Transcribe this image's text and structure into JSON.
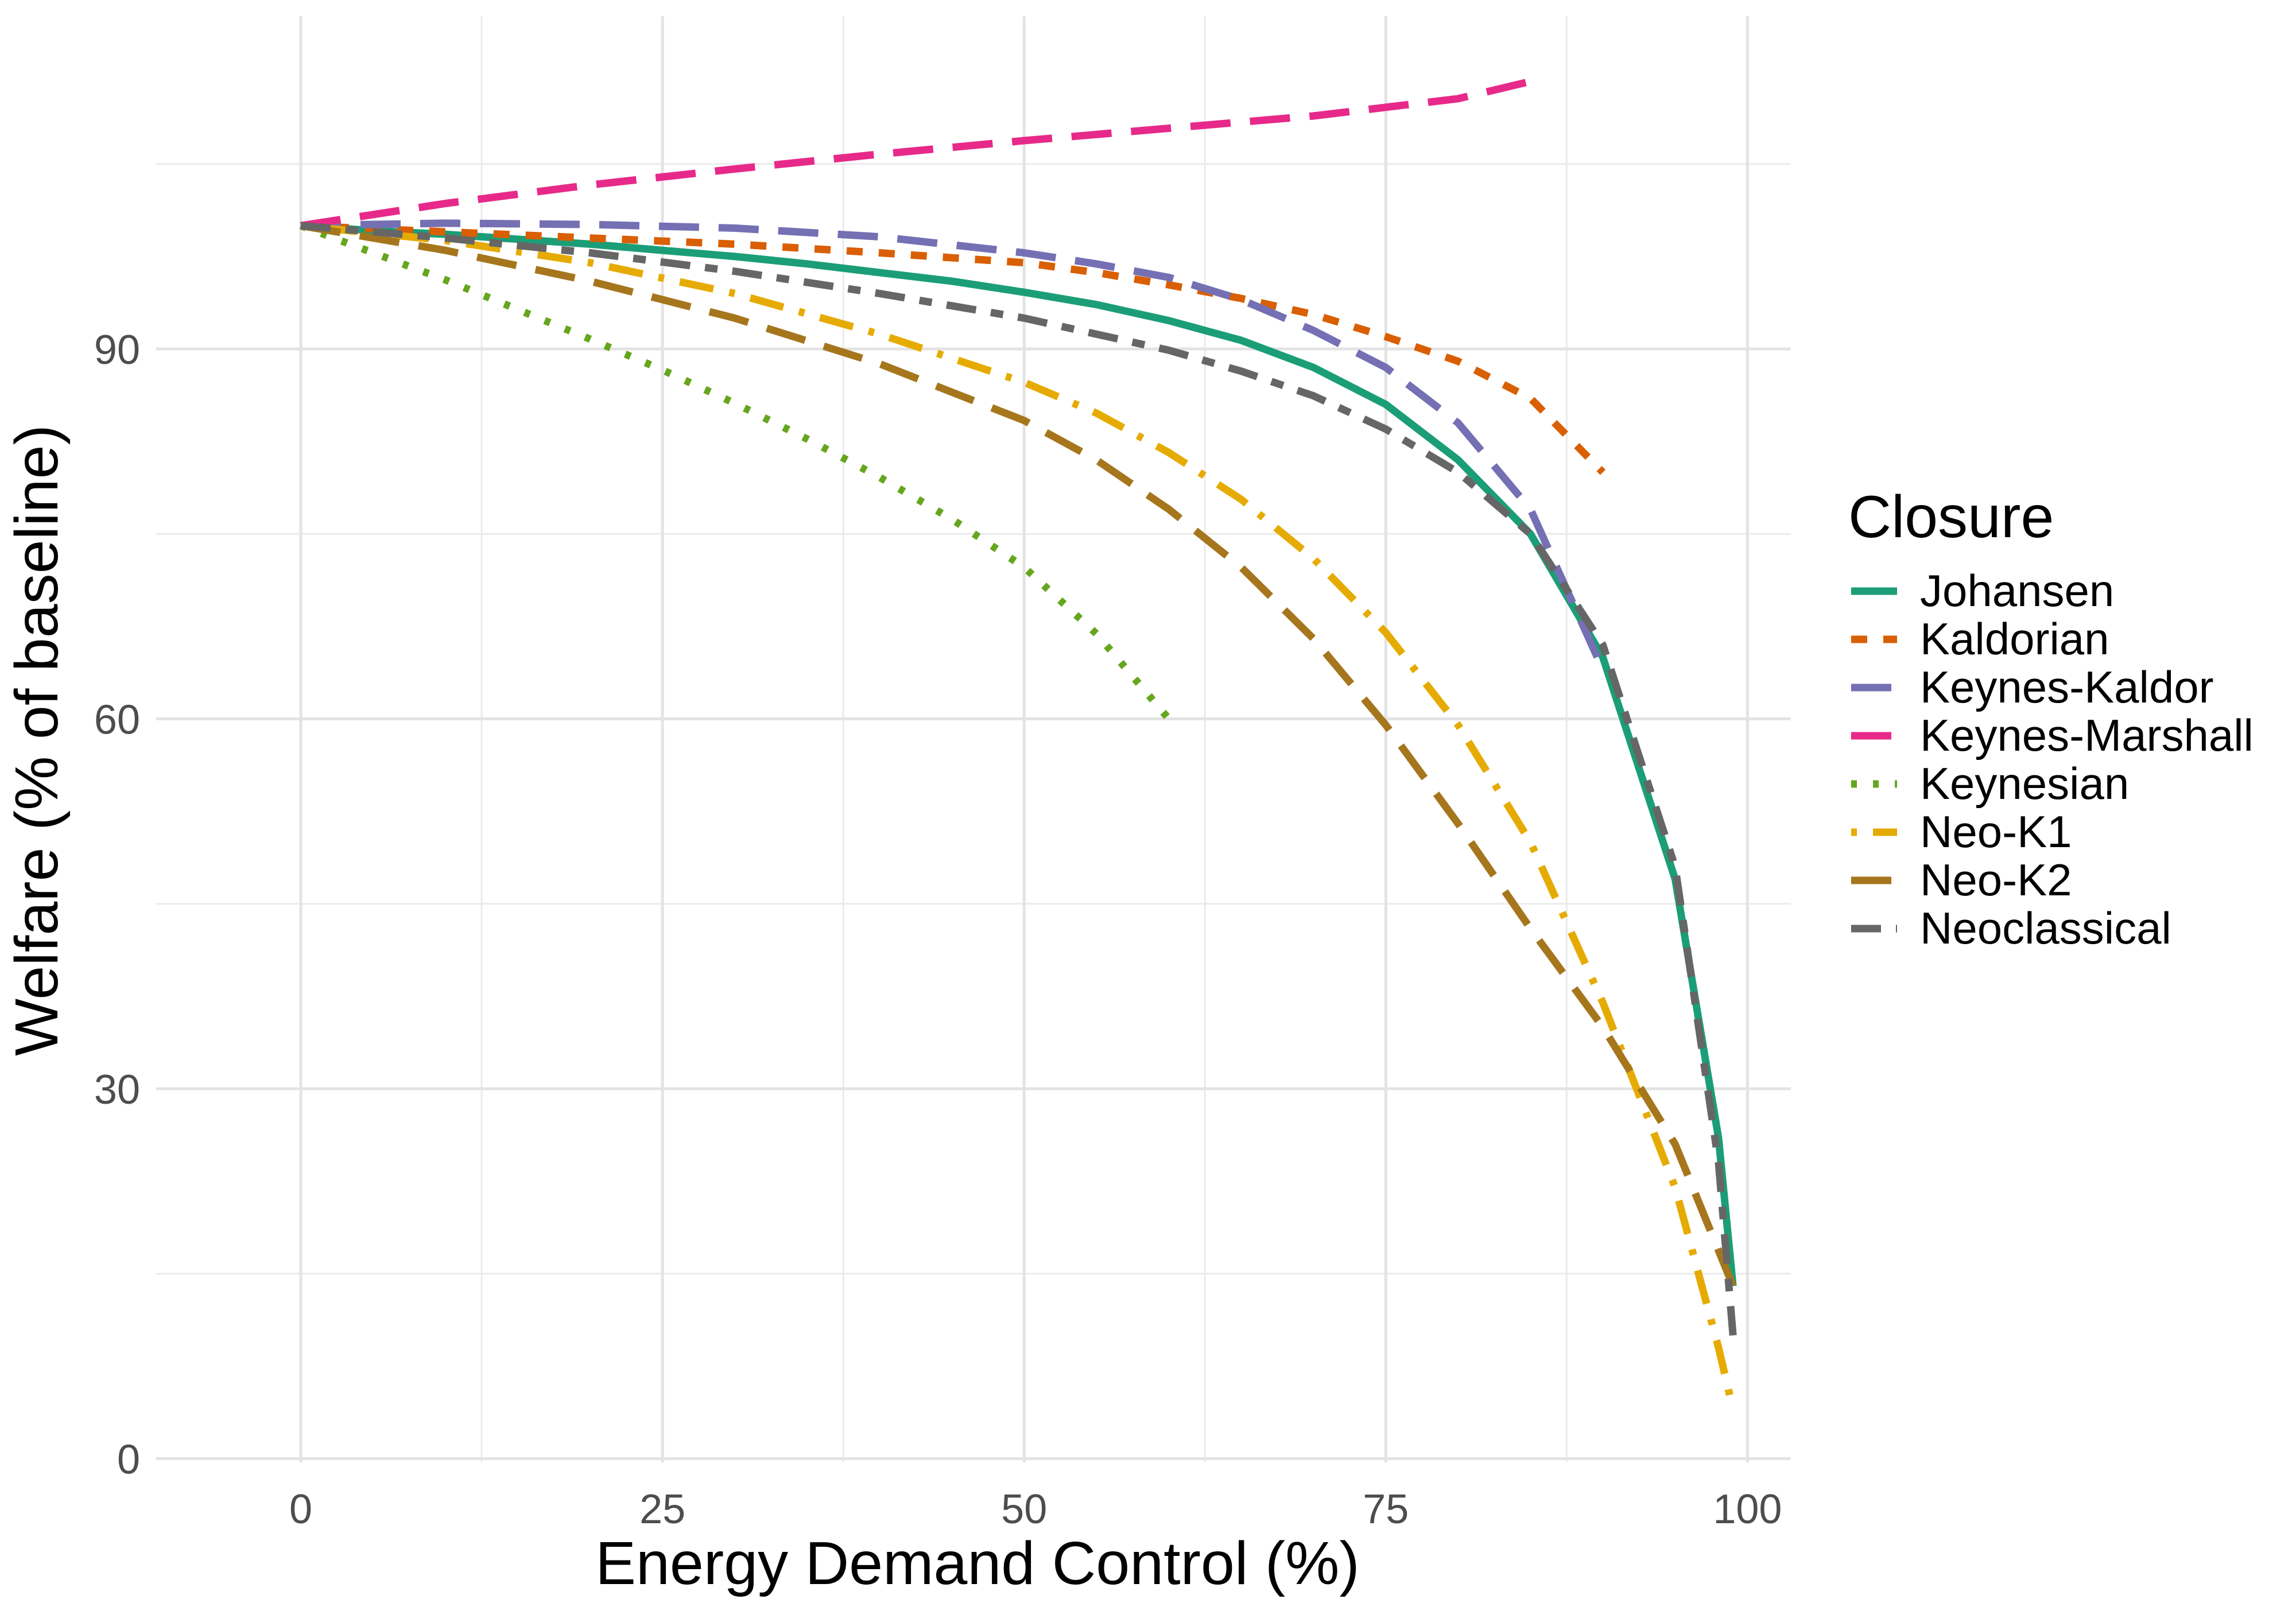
{
  "chart_data": {
    "type": "line",
    "title": "",
    "xlabel": "Energy Demand Control (%)",
    "ylabel": "Welfare (% of baseline)",
    "xlim": [
      -10,
      103
    ],
    "ylim": [
      -0.3,
      117
    ],
    "x_ticks": [
      0,
      25,
      50,
      75,
      100
    ],
    "y_ticks": [
      0,
      30,
      60,
      90
    ],
    "grid": true,
    "legend": {
      "title": "Closure",
      "position": "right"
    },
    "series": [
      {
        "name": "Johansen",
        "color": "#1b9e77",
        "linetype": "solid",
        "x": [
          0,
          5,
          10,
          15,
          20,
          25,
          30,
          35,
          40,
          45,
          50,
          55,
          60,
          65,
          70,
          75,
          80,
          85,
          90,
          95,
          98,
          99
        ],
        "y": [
          100,
          99.6,
          99.3,
          98.9,
          98.5,
          98.0,
          97.5,
          96.9,
          96.2,
          95.5,
          94.6,
          93.6,
          92.3,
          90.7,
          88.5,
          85.5,
          81.0,
          75.0,
          65.0,
          47.0,
          26.0,
          14.0
        ]
      },
      {
        "name": "Kaldorian",
        "color": "#d95f02",
        "linetype": "dashed",
        "x": [
          0,
          10,
          20,
          30,
          40,
          50,
          55,
          60,
          65,
          70,
          75,
          80,
          85,
          90
        ],
        "y": [
          100,
          99.5,
          99.0,
          98.5,
          97.8,
          97.0,
          96.2,
          95.2,
          94.1,
          92.8,
          91.0,
          89.0,
          86.0,
          80.0
        ]
      },
      {
        "name": "Keynes-Kaldor",
        "color": "#7570b3",
        "linetype": "longdash",
        "x": [
          0,
          10,
          20,
          30,
          40,
          50,
          55,
          60,
          65,
          70,
          75,
          80,
          85,
          90
        ],
        "y": [
          100,
          100.2,
          100.1,
          99.8,
          99.1,
          97.8,
          96.9,
          95.8,
          94.0,
          91.5,
          88.5,
          84.0,
          77.0,
          64.0
        ]
      },
      {
        "name": "Keynes-Marshall",
        "color": "#e7298a",
        "linetype": "longdash",
        "x": [
          0,
          10,
          20,
          30,
          40,
          50,
          60,
          70,
          80,
          85
        ],
        "y": [
          100,
          101.8,
          103.3,
          104.6,
          105.8,
          106.9,
          107.9,
          108.9,
          110.3,
          111.7
        ]
      },
      {
        "name": "Keynesian",
        "color": "#66a61e",
        "linetype": "dotted",
        "x": [
          0,
          5,
          10,
          15,
          20,
          25,
          30,
          35,
          40,
          45,
          50,
          55,
          60
        ],
        "y": [
          100,
          97.8,
          95.6,
          93.2,
          90.8,
          88.3,
          85.6,
          82.7,
          79.6,
          76.2,
          72.3,
          66.9,
          60.0
        ]
      },
      {
        "name": "Neo-K1",
        "color": "#e6ab02",
        "linetype": "dotdash",
        "x": [
          0,
          10,
          20,
          30,
          40,
          50,
          55,
          60,
          65,
          70,
          75,
          80,
          85,
          90,
          95,
          98,
          99
        ],
        "y": [
          100,
          98.8,
          97.0,
          94.5,
          91.2,
          87.3,
          84.8,
          81.6,
          77.8,
          73.0,
          67.0,
          59.5,
          50.0,
          37.0,
          22.0,
          9.0,
          4.0
        ]
      },
      {
        "name": "Neo-K2",
        "color": "#a6761d",
        "linetype": "longdash",
        "x": [
          0,
          10,
          20,
          30,
          40,
          50,
          55,
          60,
          65,
          70,
          75,
          80,
          85,
          90,
          95,
          99
        ],
        "y": [
          100,
          98.0,
          95.5,
          92.5,
          88.8,
          84.2,
          81.0,
          77.0,
          72.3,
          66.5,
          59.5,
          51.5,
          43.0,
          35.0,
          25.5,
          14.0
        ]
      },
      {
        "name": "Neoclassical",
        "color": "#666666",
        "linetype": "twodash",
        "x": [
          0,
          10,
          20,
          30,
          40,
          50,
          60,
          65,
          70,
          75,
          80,
          85,
          90,
          95,
          98,
          99
        ],
        "y": [
          100,
          99.0,
          97.8,
          96.3,
          94.5,
          92.5,
          89.9,
          88.2,
          86.2,
          83.5,
          80.0,
          75.0,
          66.0,
          48.0,
          24.0,
          10.0
        ]
      }
    ]
  }
}
